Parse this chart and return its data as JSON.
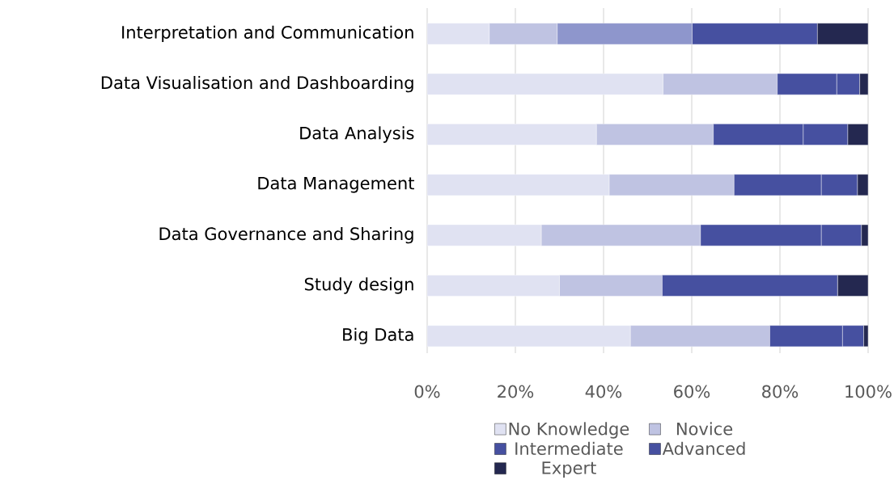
{
  "chart_data": {
    "type": "bar",
    "orientation": "horizontal",
    "stacked": true,
    "categories": [
      "Interpretation and Communication",
      "Data Visualisation and Dashboarding",
      "Data Analysis",
      "Data Management",
      "Data Governance and Sharing",
      "Study design",
      "Big Data"
    ],
    "series": [
      {
        "name": "No Knowledge",
        "color": "#e0e2f2",
        "values": [
          14.1,
          53.5,
          38.4,
          41.3,
          25.9,
          30.0,
          46.1
        ]
      },
      {
        "name": "Novice",
        "color": "#bfc3e2",
        "values": [
          15.4,
          25.9,
          26.5,
          28.3,
          36.1,
          23.3,
          31.6
        ]
      },
      {
        "name": "Intermediate",
        "color": "#4650a0",
        "colors": [
          "#8e96cc",
          "#4650a0",
          "#4650a0",
          "#4650a0",
          "#4650a0",
          "#4650a0",
          "#4650a0"
        ],
        "values": [
          30.6,
          13.5,
          20.4,
          19.8,
          27.4,
          39.8,
          16.5
        ]
      },
      {
        "name": "Advanced",
        "color": "#4650a0",
        "values": [
          28.4,
          5.2,
          10.1,
          8.2,
          9.1,
          0,
          4.8
        ]
      },
      {
        "name": "Expert",
        "color": "#242850",
        "values": [
          11.5,
          1.9,
          4.6,
          2.4,
          1.5,
          6.9,
          1.0
        ]
      }
    ],
    "xlim": [
      0,
      100
    ],
    "xticks": [
      {
        "value": 0,
        "label": "0%"
      },
      {
        "value": 20,
        "label": "20%"
      },
      {
        "value": 40,
        "label": "40%"
      },
      {
        "value": 60,
        "label": "60%"
      },
      {
        "value": 80,
        "label": "80%"
      },
      {
        "value": 100,
        "label": "100%"
      }
    ],
    "grid": "x",
    "legend": "bottom"
  }
}
